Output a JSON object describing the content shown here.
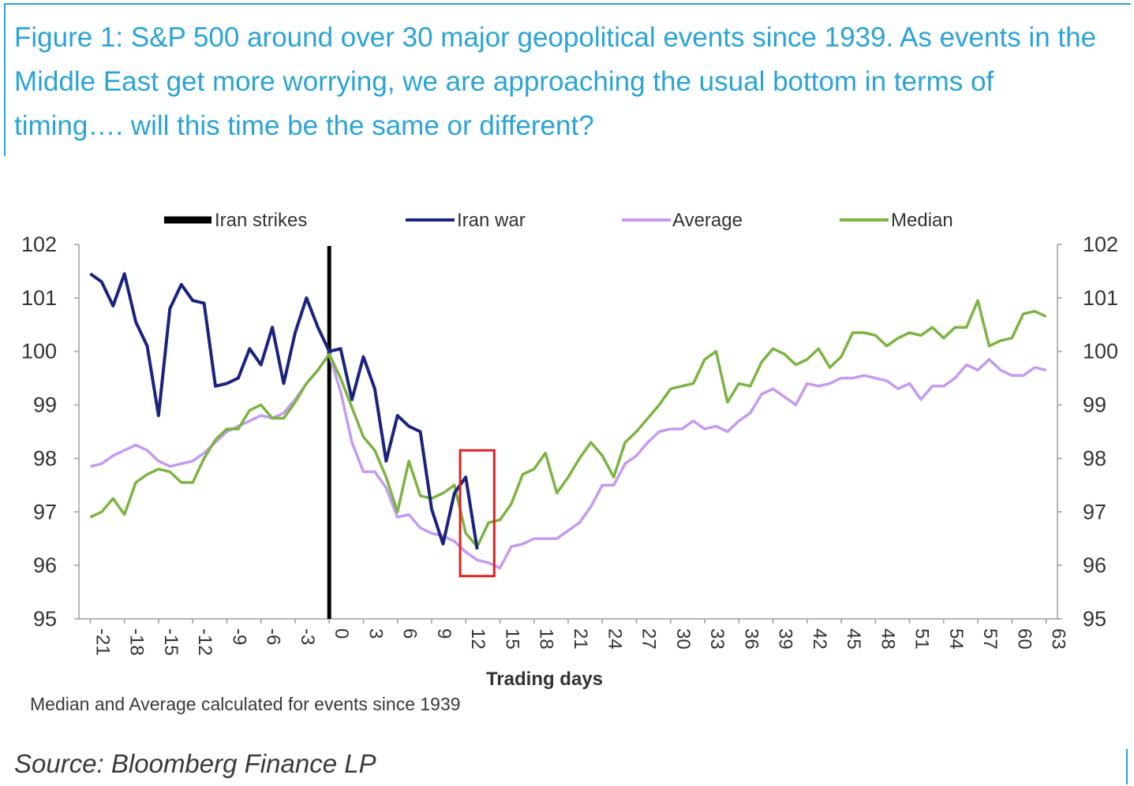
{
  "figure": {
    "title": "Figure 1: S&P 500 around over 30 major geopolitical events since 1939. As events in the Middle East get more worrying, we are approaching the usual bottom in terms of timing…. will this time be the same or different?",
    "footnote": "Median and Average calculated for events since 1939",
    "source": "Source: Bloomberg Finance LP",
    "accent_color": "#2ba3d6"
  },
  "chart_data": {
    "type": "line",
    "xlabel": "Trading days",
    "ylabel": "",
    "xlim": [
      -22,
      64
    ],
    "ylim": [
      95,
      102
    ],
    "y_ticks": [
      95,
      96,
      97,
      98,
      99,
      100,
      101,
      102
    ],
    "x_ticks": [
      -21,
      -18,
      -15,
      -12,
      -9,
      -6,
      -3,
      0,
      3,
      6,
      9,
      12,
      15,
      18,
      21,
      24,
      27,
      30,
      33,
      36,
      39,
      42,
      45,
      48,
      51,
      54,
      57,
      60,
      63
    ],
    "legend_position": "top",
    "event_marker": {
      "name": "Iran strikes",
      "x": 0,
      "color": "#000000"
    },
    "highlight_box": {
      "x_range": [
        11.5,
        14.5
      ],
      "y_range": [
        95.8,
        98.15
      ],
      "color": "#e02020"
    },
    "series": [
      {
        "name": "Iran war",
        "color": "#1a237e",
        "x": [
          -21,
          -20,
          -19,
          -18,
          -17,
          -16,
          -15,
          -14,
          -13,
          -12,
          -11,
          -10,
          -9,
          -8,
          -7,
          -6,
          -5,
          -4,
          -3,
          -2,
          -1,
          0,
          1,
          2,
          3,
          4,
          5,
          6,
          7,
          8,
          9,
          10,
          11,
          12,
          13
        ],
        "values": [
          101.45,
          101.3,
          100.85,
          101.45,
          100.55,
          100.1,
          98.8,
          100.8,
          101.25,
          100.95,
          100.9,
          99.35,
          99.4,
          99.5,
          100.05,
          99.75,
          100.45,
          99.4,
          100.35,
          101.0,
          100.45,
          100.0,
          100.05,
          99.1,
          99.9,
          99.3,
          97.95,
          98.8,
          98.6,
          98.5,
          97.05,
          96.4,
          97.35,
          97.65,
          96.3
        ]
      },
      {
        "name": "Average",
        "color": "#c39bf0",
        "x": [
          -21,
          -20,
          -19,
          -18,
          -17,
          -16,
          -15,
          -14,
          -13,
          -12,
          -11,
          -10,
          -9,
          -8,
          -7,
          -6,
          -5,
          -4,
          -3,
          -2,
          -1,
          0,
          1,
          2,
          3,
          4,
          5,
          6,
          7,
          8,
          9,
          10,
          11,
          12,
          13,
          14,
          15,
          16,
          17,
          18,
          19,
          20,
          21,
          22,
          23,
          24,
          25,
          26,
          27,
          28,
          29,
          30,
          31,
          32,
          33,
          34,
          35,
          36,
          37,
          38,
          39,
          40,
          41,
          42,
          43,
          44,
          45,
          46,
          47,
          48,
          49,
          50,
          51,
          52,
          53,
          54,
          55,
          56,
          57,
          58,
          59,
          60,
          61,
          62,
          63
        ],
        "values": [
          97.85,
          97.9,
          98.05,
          98.15,
          98.25,
          98.15,
          97.95,
          97.85,
          97.9,
          97.95,
          98.1,
          98.3,
          98.5,
          98.6,
          98.7,
          98.8,
          98.75,
          98.85,
          99.1,
          99.4,
          99.65,
          99.95,
          99.25,
          98.3,
          97.75,
          97.75,
          97.45,
          96.9,
          96.95,
          96.7,
          96.6,
          96.55,
          96.45,
          96.25,
          96.1,
          96.05,
          95.95,
          96.35,
          96.4,
          96.5,
          96.5,
          96.5,
          96.65,
          96.8,
          97.1,
          97.5,
          97.5,
          97.9,
          98.05,
          98.3,
          98.5,
          98.55,
          98.55,
          98.7,
          98.55,
          98.6,
          98.5,
          98.7,
          98.85,
          99.2,
          99.3,
          99.15,
          99.0,
          99.4,
          99.35,
          99.4,
          99.5,
          99.5,
          99.55,
          99.5,
          99.45,
          99.3,
          99.4,
          99.1,
          99.35,
          99.35,
          99.5,
          99.75,
          99.65,
          99.85,
          99.65,
          99.55,
          99.55,
          99.7,
          99.65
        ]
      },
      {
        "name": "Median",
        "color": "#7cb342",
        "x": [
          -21,
          -20,
          -19,
          -18,
          -17,
          -16,
          -15,
          -14,
          -13,
          -12,
          -11,
          -10,
          -9,
          -8,
          -7,
          -6,
          -5,
          -4,
          -3,
          -2,
          -1,
          0,
          1,
          2,
          3,
          4,
          5,
          6,
          7,
          8,
          9,
          10,
          11,
          12,
          13,
          14,
          15,
          16,
          17,
          18,
          19,
          20,
          21,
          22,
          23,
          24,
          25,
          26,
          27,
          28,
          29,
          30,
          31,
          32,
          33,
          34,
          35,
          36,
          37,
          38,
          39,
          40,
          41,
          42,
          43,
          44,
          45,
          46,
          47,
          48,
          49,
          50,
          51,
          52,
          53,
          54,
          55,
          56,
          57,
          58,
          59,
          60,
          61,
          62,
          63
        ],
        "values": [
          96.9,
          97.0,
          97.25,
          96.95,
          97.55,
          97.7,
          97.8,
          97.75,
          97.55,
          97.55,
          98.0,
          98.35,
          98.55,
          98.55,
          98.9,
          99.0,
          98.75,
          98.75,
          99.05,
          99.4,
          99.65,
          99.95,
          99.5,
          98.95,
          98.4,
          98.15,
          97.65,
          97.0,
          97.95,
          97.3,
          97.25,
          97.35,
          97.5,
          96.6,
          96.35,
          96.8,
          96.85,
          97.15,
          97.7,
          97.8,
          98.1,
          97.35,
          97.65,
          98.0,
          98.3,
          98.05,
          97.65,
          98.3,
          98.5,
          98.75,
          99.0,
          99.3,
          99.35,
          99.4,
          99.85,
          100.0,
          99.05,
          99.4,
          99.35,
          99.8,
          100.05,
          99.95,
          99.75,
          99.85,
          100.05,
          99.7,
          99.9,
          100.35,
          100.35,
          100.3,
          100.1,
          100.25,
          100.35,
          100.3,
          100.45,
          100.25,
          100.45,
          100.45,
          100.95,
          100.1,
          100.2,
          100.25,
          100.7,
          100.75,
          100.65
        ]
      }
    ]
  }
}
